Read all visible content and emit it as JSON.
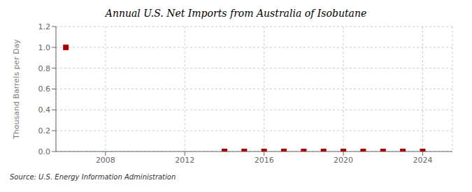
{
  "chart_data": {
    "type": "scatter",
    "title": "Annual U.S. Net Imports from Australia of Isobutane",
    "y_label": "Thousand Barrels per Day",
    "annotation": "Source: U.S. Energy Information Administration",
    "x": [
      2006,
      2014,
      2015,
      2016,
      2017,
      2018,
      2019,
      2020,
      2021,
      2022,
      2023,
      2024
    ],
    "values": [
      1.0,
      0.0,
      0.0,
      0.0,
      0.0,
      0.0,
      0.0,
      0.0,
      0.0,
      0.0,
      0.0,
      0.0
    ],
    "color": "#aa0000",
    "marker": "square",
    "xlim": [
      2005.5,
      2025.5
    ],
    "xticks": [
      2008,
      2012,
      2016,
      2020,
      2024
    ],
    "ylim": [
      0.0,
      1.2
    ],
    "yticks": [
      {
        "value": 0.0,
        "label": "0.0"
      },
      0.2,
      0.4,
      0.6,
      0.8,
      {
        "value": 1.0,
        "label": "1.0"
      },
      1.2
    ],
    "grid": true
  }
}
